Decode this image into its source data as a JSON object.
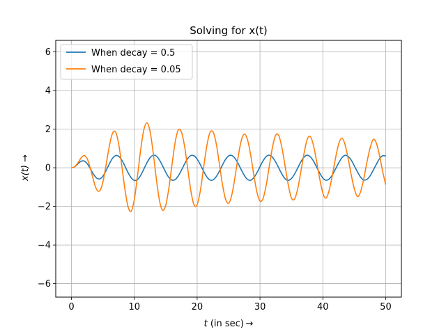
{
  "chart_data": {
    "type": "line",
    "title": "Solving for x(t)",
    "xlabel": {
      "main": "t",
      "rest": " (in sec) →"
    },
    "ylabel": {
      "main": "x(t)",
      "rest": " →"
    },
    "xlim": [
      -2.5,
      52.5
    ],
    "ylim": [
      -6.7,
      6.6
    ],
    "xticks": [
      0,
      10,
      20,
      30,
      40,
      50
    ],
    "yticks": [
      -6,
      -4,
      -2,
      0,
      2,
      4,
      6
    ],
    "xtick_labels": [
      "0",
      "10",
      "20",
      "30",
      "40",
      "50"
    ],
    "ytick_labels": [
      "−6",
      "−4",
      "−2",
      "0",
      "2",
      "4",
      "6"
    ],
    "grid": true,
    "legend_position": "upper-left",
    "series": [
      {
        "name": "When decay = 0.5",
        "color": "#1f77b4",
        "x": [
          0,
          0.5,
          1,
          1.5,
          2,
          2.5,
          3,
          3.5,
          4,
          4.5,
          5,
          5.5,
          6,
          6.5,
          7,
          7.5,
          8,
          8.5,
          9,
          9.5,
          10,
          10.5,
          11,
          11.5,
          12,
          12.5,
          13,
          13.5,
          14,
          14.5,
          15,
          15.5,
          16,
          16.5,
          17,
          17.5,
          18,
          18.5,
          19,
          19.5,
          20,
          20.5,
          21,
          21.5,
          22,
          22.5,
          23,
          23.5,
          24,
          24.5,
          25,
          25.5,
          26,
          26.5,
          27,
          27.5,
          28,
          28.5,
          29,
          29.5,
          30,
          30.5,
          31,
          31.5,
          32,
          32.5,
          33,
          33.5,
          34,
          34.5,
          35,
          35.5,
          36,
          36.5,
          37,
          37.5,
          38,
          38.5,
          39,
          39.5,
          40,
          40.5,
          41,
          41.5,
          42,
          42.5,
          43,
          43.5,
          44,
          44.5,
          45,
          45.5,
          46,
          46.5,
          47,
          47.5,
          48,
          48.5,
          49,
          49.5,
          50
        ],
        "y": [
          0,
          0.047,
          0.193,
          0.332,
          0.356,
          0.214,
          -0.049,
          -0.331,
          -0.532,
          -0.576,
          -0.436,
          -0.152,
          0.186,
          0.474,
          0.626,
          0.602,
          0.405,
          0.09,
          -0.248,
          -0.518,
          -0.653,
          -0.611,
          -0.4,
          -0.081,
          0.254,
          0.52,
          0.649,
          0.607,
          0.405,
          0.095,
          -0.234,
          -0.502,
          -0.64,
          -0.611,
          -0.424,
          -0.128,
          0.198,
          0.478,
          0.632,
          0.621,
          0.451,
          0.165,
          -0.161,
          -0.452,
          -0.625,
          -0.633,
          -0.476,
          -0.201,
          0.124,
          0.424,
          0.614,
          0.641,
          0.499,
          0.235,
          -0.089,
          -0.394,
          -0.6,
          -0.646,
          -0.52,
          -0.267,
          0.055,
          0.366,
          0.586,
          0.651,
          0.538,
          0.296,
          -0.021,
          -0.336,
          -0.57,
          -0.652,
          -0.555,
          -0.325,
          -0.011,
          0.305,
          0.551,
          0.651,
          0.57,
          0.354,
          0.043,
          -0.273,
          -0.53,
          -0.648,
          -0.583,
          -0.381,
          -0.074,
          0.239,
          0.507,
          0.641,
          0.594,
          0.406,
          0.105,
          -0.206,
          -0.483,
          -0.632,
          -0.603,
          -0.43,
          -0.135,
          0.172,
          0.457,
          0.621,
          0.61
        ]
      },
      {
        "name": "When decay = 0.05",
        "color": "#ff7f0e",
        "x": [
          0,
          0.5,
          1,
          1.5,
          2,
          2.5,
          3,
          3.5,
          4,
          4.5,
          5,
          5.5,
          6,
          6.5,
          7,
          7.5,
          8,
          8.5,
          9,
          9.5,
          10,
          10.5,
          11,
          11.5,
          12,
          12.5,
          13,
          13.5,
          14,
          14.5,
          15,
          15.5,
          16,
          16.5,
          17,
          17.5,
          18,
          18.5,
          19,
          19.5,
          20,
          20.5,
          21,
          21.5,
          22,
          22.5,
          23,
          23.5,
          24,
          24.5,
          25,
          25.5,
          26,
          26.5,
          27,
          27.5,
          28,
          28.5,
          29,
          29.5,
          30,
          30.5,
          31,
          31.5,
          32,
          32.5,
          33,
          33.5,
          34,
          34.5,
          35,
          35.5,
          36,
          36.5,
          37,
          37.5,
          38,
          38.5,
          39,
          39.5,
          40,
          40.5,
          41,
          41.5,
          42,
          42.5,
          43,
          43.5,
          44,
          44.5,
          45,
          45.5,
          46,
          46.5,
          47,
          47.5,
          48,
          48.5,
          49,
          49.5,
          50
        ],
        "y": [
          0,
          0.05,
          0.241,
          0.496,
          0.635,
          0.47,
          -0.019,
          -0.643,
          -1.12,
          -1.19,
          -0.74,
          0.13,
          1.08,
          1.76,
          1.86,
          1.26,
          0.128,
          -1.1,
          -2.01,
          -2.25,
          -1.65,
          -0.442,
          0.903,
          1.94,
          2.33,
          1.9,
          0.79,
          -0.562,
          -1.69,
          -2.2,
          -1.94,
          -1.05,
          0.171,
          1.32,
          1.96,
          1.85,
          1.11,
          -0.041,
          -1.2,
          -1.92,
          -1.91,
          -1.2,
          -0.06,
          1.06,
          1.79,
          1.87,
          1.31,
          0.286,
          -0.806,
          -1.6,
          -1.84,
          -1.42,
          -0.53,
          0.526,
          1.38,
          1.75,
          1.47,
          0.695,
          -0.34,
          -1.24,
          -1.72,
          -1.58,
          -0.88,
          0.124,
          1.09,
          1.69,
          1.66,
          1.02,
          0.082,
          -0.887,
          -1.56,
          -1.62,
          -1.09,
          -0.208,
          0.728,
          1.46,
          1.62,
          1.17,
          0.347,
          -0.563,
          -1.31,
          -1.57,
          -1.18,
          -0.416,
          0.47,
          1.21,
          1.54,
          1.24,
          0.521,
          -0.341,
          -1.08,
          -1.49,
          -1.25,
          -0.58,
          0.259,
          1.0,
          1.46,
          1.29,
          0.664,
          -0.156,
          -0.876
        ]
      }
    ]
  }
}
